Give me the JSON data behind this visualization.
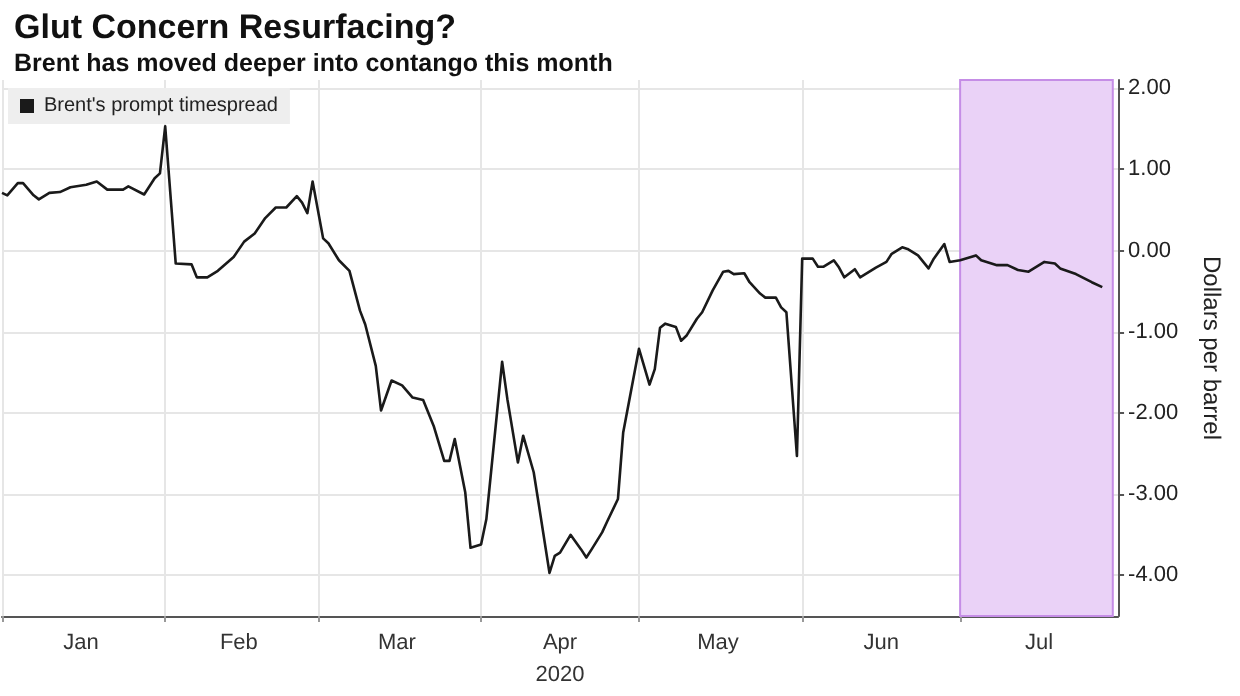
{
  "chart_data": {
    "type": "line",
    "title": "Glut Concern Resurfacing?",
    "subtitle": "Brent has moved deeper into contango this month",
    "xlabel": "2020",
    "ylabel": "Dollars per barrel",
    "x": [
      "2020-01-01",
      "2020-01-02",
      "2020-01-04",
      "2020-01-05",
      "2020-01-07",
      "2020-01-08",
      "2020-01-10",
      "2020-01-12",
      "2020-01-14",
      "2020-01-17",
      "2020-01-19",
      "2020-01-21",
      "2020-01-24",
      "2020-01-25",
      "2020-01-28",
      "2020-01-30",
      "2020-01-31",
      "2020-02-01",
      "2020-02-03",
      "2020-02-06",
      "2020-02-07",
      "2020-02-09",
      "2020-02-11",
      "2020-02-14",
      "2020-02-16",
      "2020-02-18",
      "2020-02-20",
      "2020-02-22",
      "2020-02-24",
      "2020-02-26",
      "2020-02-27",
      "2020-02-28",
      "2020-02-29",
      "2020-03-02",
      "2020-03-03",
      "2020-03-05",
      "2020-03-07",
      "2020-03-09",
      "2020-03-10",
      "2020-03-12",
      "2020-03-13",
      "2020-03-15",
      "2020-03-17",
      "2020-03-19",
      "2020-03-21",
      "2020-03-23",
      "2020-03-25",
      "2020-03-26",
      "2020-03-27",
      "2020-03-29",
      "2020-03-30",
      "2020-04-01",
      "2020-04-02",
      "2020-04-05",
      "2020-04-06",
      "2020-04-08",
      "2020-04-09",
      "2020-04-11",
      "2020-04-12",
      "2020-04-14",
      "2020-04-15",
      "2020-04-16",
      "2020-04-18",
      "2020-04-20",
      "2020-04-21",
      "2020-04-22",
      "2020-04-24",
      "2020-04-25",
      "2020-04-27",
      "2020-04-28",
      "2020-05-01",
      "2020-05-03",
      "2020-05-04",
      "2020-05-05",
      "2020-05-06",
      "2020-05-08",
      "2020-05-09",
      "2020-05-10",
      "2020-05-12",
      "2020-05-13",
      "2020-05-15",
      "2020-05-17",
      "2020-05-18",
      "2020-05-19",
      "2020-05-21",
      "2020-05-22",
      "2020-05-24",
      "2020-05-25",
      "2020-05-27",
      "2020-05-28",
      "2020-05-29",
      "2020-05-31",
      "2020-06-01",
      "2020-06-03",
      "2020-06-04",
      "2020-06-05",
      "2020-06-07",
      "2020-06-08",
      "2020-06-09",
      "2020-06-11",
      "2020-06-12",
      "2020-06-14",
      "2020-06-15",
      "2020-06-17",
      "2020-06-18",
      "2020-06-20",
      "2020-06-21",
      "2020-06-23",
      "2020-06-25",
      "2020-06-26",
      "2020-06-28",
      "2020-06-29",
      "2020-07-01",
      "2020-07-04",
      "2020-07-05",
      "2020-07-08",
      "2020-07-10",
      "2020-07-12",
      "2020-07-14",
      "2020-07-17",
      "2020-07-19",
      "2020-07-20",
      "2020-07-23",
      "2020-07-26",
      "2020-07-28"
    ],
    "series": [
      {
        "name": "Brent's prompt timespread",
        "color": "#1a1a1a",
        "values": [
          0.71,
          0.68,
          0.83,
          0.83,
          0.68,
          0.63,
          0.71,
          0.72,
          0.78,
          0.81,
          0.85,
          0.75,
          0.75,
          0.79,
          0.69,
          0.89,
          0.95,
          1.53,
          -0.16,
          -0.17,
          -0.33,
          -0.33,
          -0.25,
          -0.08,
          0.11,
          0.21,
          0.4,
          0.53,
          0.53,
          0.67,
          0.59,
          0.46,
          0.85,
          0.15,
          0.09,
          -0.12,
          -0.25,
          -0.74,
          -0.91,
          -1.42,
          -1.97,
          -1.6,
          -1.66,
          -1.81,
          -1.84,
          -2.16,
          -2.59,
          -2.59,
          -2.32,
          -2.98,
          -3.66,
          -3.62,
          -3.31,
          -1.37,
          -1.83,
          -2.61,
          -2.28,
          -2.73,
          -3.14,
          -3.97,
          -3.76,
          -3.72,
          -3.5,
          -3.68,
          -3.78,
          -3.68,
          -3.47,
          -3.33,
          -3.06,
          -2.24,
          -1.21,
          -1.65,
          -1.46,
          -0.95,
          -0.9,
          -0.94,
          -1.11,
          -1.05,
          -0.84,
          -0.76,
          -0.49,
          -0.26,
          -0.25,
          -0.29,
          -0.28,
          -0.39,
          -0.53,
          -0.58,
          -0.58,
          -0.7,
          -0.76,
          -2.53,
          -0.1,
          -0.1,
          -0.2,
          -0.2,
          -0.12,
          -0.21,
          -0.33,
          -0.23,
          -0.33,
          -0.25,
          -0.21,
          -0.14,
          -0.04,
          0.04,
          0.02,
          -0.06,
          -0.22,
          -0.1,
          0.08,
          -0.14,
          -0.12,
          -0.06,
          -0.12,
          -0.18,
          -0.18,
          -0.24,
          -0.26,
          -0.14,
          -0.16,
          -0.22,
          -0.29,
          -0.39,
          -0.45
        ]
      }
    ],
    "xlim": [
      "2020-01-01",
      "2020-07-31"
    ],
    "xticks": [
      {
        "value": "2020-01-01",
        "label": null
      },
      {
        "value": "2020-01-16",
        "label": "Jan"
      },
      {
        "value": "2020-02-01",
        "label": null
      },
      {
        "value": "2020-02-15",
        "label": "Feb"
      },
      {
        "value": "2020-03-01",
        "label": null
      },
      {
        "value": "2020-03-16",
        "label": "Mar"
      },
      {
        "value": "2020-04-01",
        "label": null
      },
      {
        "value": "2020-04-16",
        "label": "Apr"
      },
      {
        "value": "2020-05-01",
        "label": null
      },
      {
        "value": "2020-05-16",
        "label": "May"
      },
      {
        "value": "2020-06-01",
        "label": null
      },
      {
        "value": "2020-06-16",
        "label": "Jun"
      },
      {
        "value": "2020-07-01",
        "label": null
      },
      {
        "value": "2020-07-16",
        "label": "Jul"
      }
    ],
    "ylim": [
      -4.5,
      2.1
    ],
    "yticks": [
      {
        "value": -4,
        "label": "-4.00"
      },
      {
        "value": -3,
        "label": "-3.00"
      },
      {
        "value": -2,
        "label": "-2.00"
      },
      {
        "value": -1,
        "label": "-1.00"
      },
      {
        "value": 0,
        "label": "0.00"
      },
      {
        "value": 1,
        "label": "1.00"
      },
      {
        "value": 2,
        "label": "2.00"
      }
    ],
    "bands": [
      {
        "axis": "x",
        "from": "2020-07-01",
        "to": "2020-07-30",
        "color": "#ead2f7"
      }
    ],
    "grid": true,
    "legend": "top left",
    "marker": "none",
    "line_style": "solid"
  }
}
